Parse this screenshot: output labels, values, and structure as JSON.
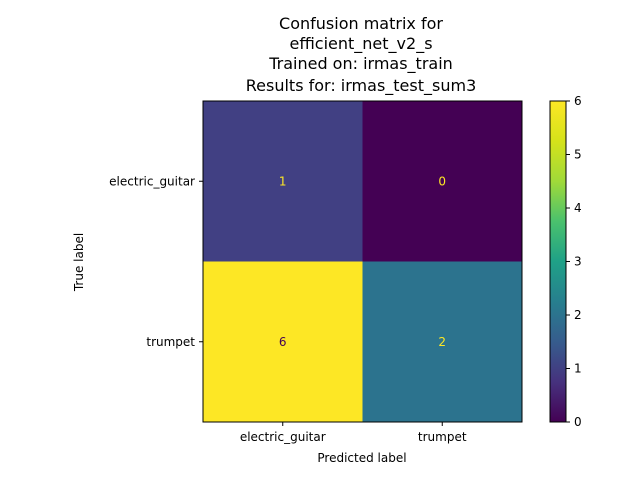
{
  "chart_data": {
    "type": "heatmap",
    "title_lines": [
      "Confusion matrix for",
      "efficient_net_v2_s",
      "Trained on: irmas_train",
      "Results for: irmas_test_sum3"
    ],
    "xlabel": "Predicted label",
    "ylabel": "True label",
    "x_categories": [
      "electric_guitar",
      "trumpet"
    ],
    "y_categories": [
      "electric_guitar",
      "trumpet"
    ],
    "matrix": [
      [
        1,
        0
      ],
      [
        6,
        2
      ]
    ],
    "colormap": "viridis",
    "colorbar": {
      "min": 0,
      "max": 6,
      "ticks": [
        "0",
        "1",
        "2",
        "3",
        "4",
        "5",
        "6"
      ]
    },
    "text_colors": {
      "on_dark": "#fde725",
      "on_light": "#440154"
    }
  }
}
